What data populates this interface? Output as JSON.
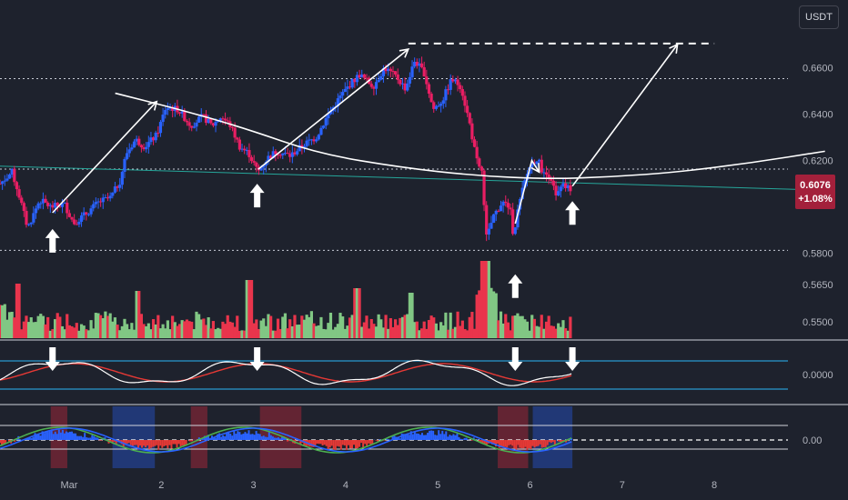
{
  "currency_label": "USDT",
  "last_price": "0.6076",
  "price_change": "+1.08%",
  "colors": {
    "background": "#1e222d",
    "up": "#089981",
    "down": "#f23645",
    "candle_up": "#2962ff",
    "candle_down": "#e91e63",
    "volume_up": "#81c784",
    "volume_down": "#e9354c",
    "annotation": "#ffffff",
    "trendline": "#26a69a",
    "signal_line": "#29b6f6",
    "highlight_red": "#b7283b",
    "highlight_blue": "#2962ff"
  },
  "chart_data": {
    "type": "candlestick",
    "x_tick_labels": [
      "Mar",
      "2",
      "3",
      "4",
      "5",
      "6",
      "7",
      "8"
    ],
    "x_ticks": [
      1,
      2,
      3,
      4,
      5,
      6,
      7,
      8
    ],
    "xlim": [
      0.25,
      9.45
    ],
    "price_tick_labels": [
      "0.6600",
      "0.6400",
      "0.6200",
      "0.5800",
      "0.5650",
      "0.5500"
    ],
    "price_ticks": [
      0.66,
      0.64,
      0.62,
      0.58
    ],
    "ylim": [
      0.5787,
      0.6735
    ],
    "volume_labels": [
      {
        "label": "0.5650",
        "y": 313
      },
      {
        "label": "0.5500",
        "y": 354
      }
    ],
    "osc1_label": "0.0000",
    "osc2_label": "0.00",
    "horizontal_levels": [
      0.6553,
      0.6163,
      0.5813
    ],
    "resistance_high": 0.6704,
    "price_path": [
      [
        0.25,
        0.61
      ],
      [
        0.38,
        0.615
      ],
      [
        0.45,
        0.606
      ],
      [
        0.55,
        0.591
      ],
      [
        0.68,
        0.603
      ],
      [
        0.8,
        0.6
      ],
      [
        0.95,
        0.601
      ],
      [
        1.05,
        0.593
      ],
      [
        1.18,
        0.597
      ],
      [
        1.32,
        0.602
      ],
      [
        1.45,
        0.604
      ],
      [
        1.55,
        0.611
      ],
      [
        1.62,
        0.623
      ],
      [
        1.72,
        0.629
      ],
      [
        1.82,
        0.626
      ],
      [
        1.95,
        0.631
      ],
      [
        2.05,
        0.643
      ],
      [
        2.18,
        0.642
      ],
      [
        2.32,
        0.635
      ],
      [
        2.45,
        0.639
      ],
      [
        2.55,
        0.635
      ],
      [
        2.65,
        0.639
      ],
      [
        2.75,
        0.635
      ],
      [
        2.85,
        0.626
      ],
      [
        2.95,
        0.623
      ],
      [
        3.05,
        0.615
      ],
      [
        3.15,
        0.621
      ],
      [
        3.25,
        0.624
      ],
      [
        3.4,
        0.622
      ],
      [
        3.55,
        0.627
      ],
      [
        3.68,
        0.63
      ],
      [
        3.8,
        0.639
      ],
      [
        3.95,
        0.648
      ],
      [
        4.05,
        0.653
      ],
      [
        4.15,
        0.657
      ],
      [
        4.3,
        0.652
      ],
      [
        4.42,
        0.66
      ],
      [
        4.55,
        0.656
      ],
      [
        4.65,
        0.651
      ],
      [
        4.75,
        0.663
      ],
      [
        4.85,
        0.658
      ],
      [
        4.95,
        0.642
      ],
      [
        5.05,
        0.646
      ],
      [
        5.15,
        0.655
      ],
      [
        5.25,
        0.652
      ],
      [
        5.35,
        0.635
      ],
      [
        5.42,
        0.62
      ],
      [
        5.48,
        0.615
      ],
      [
        5.53,
        0.586
      ],
      [
        5.6,
        0.596
      ],
      [
        5.7,
        0.602
      ],
      [
        5.78,
        0.6
      ],
      [
        5.82,
        0.588
      ],
      [
        5.87,
        0.599
      ],
      [
        5.93,
        0.609
      ],
      [
        6.0,
        0.618
      ],
      [
        6.08,
        0.621
      ],
      [
        6.15,
        0.614
      ],
      [
        6.22,
        0.614
      ],
      [
        6.28,
        0.604
      ],
      [
        6.35,
        0.609
      ],
      [
        6.45,
        0.6076
      ]
    ],
    "annotations": {
      "arrows_up_main": [
        {
          "x": 0.82,
          "y": 0.585
        },
        {
          "x": 3.04,
          "y": 0.6045
        },
        {
          "x": 5.84,
          "y": 0.5655
        },
        {
          "x": 6.46,
          "y": 0.597
        }
      ],
      "arrows_down_osc1": [
        0.82,
        3.04,
        5.84,
        6.46
      ],
      "swing_path": [
        [
          0.82,
          0.5975
        ],
        [
          1.95,
          0.6454
        ]
      ],
      "swing_path_2": [
        [
          3.05,
          0.6162
        ],
        [
          4.68,
          0.668
        ]
      ],
      "swing_path_3": [
        [
          5.84,
          0.5928
        ],
        [
          6.02,
          0.62
        ],
        [
          6.1,
          0.615
        ]
      ],
      "projection": [
        [
          6.46,
          0.609
        ],
        [
          7.6,
          0.67
        ]
      ],
      "arc": [
        [
          1.5,
          0.649
        ],
        [
          2.2,
          0.642
        ],
        [
          2.9,
          0.634
        ],
        [
          3.7,
          0.623
        ],
        [
          4.6,
          0.617
        ],
        [
          5.4,
          0.6135
        ],
        [
          6.2,
          0.612
        ],
        [
          6.9,
          0.613
        ],
        [
          7.6,
          0.615
        ],
        [
          8.4,
          0.619
        ],
        [
          9.2,
          0.624
        ]
      ],
      "trendline": [
        [
          0.25,
          0.6176
        ],
        [
          9.2,
          0.6072
        ]
      ]
    },
    "highlight_bands": [
      {
        "x0": 0.8,
        "x1": 0.98,
        "color": "red"
      },
      {
        "x0": 1.47,
        "x1": 1.93,
        "color": "blue"
      },
      {
        "x0": 2.32,
        "x1": 2.5,
        "color": "red"
      },
      {
        "x0": 3.07,
        "x1": 3.52,
        "color": "red"
      },
      {
        "x0": 5.65,
        "x1": 5.98,
        "color": "red"
      },
      {
        "x0": 6.03,
        "x1": 6.46,
        "color": "blue"
      }
    ]
  }
}
